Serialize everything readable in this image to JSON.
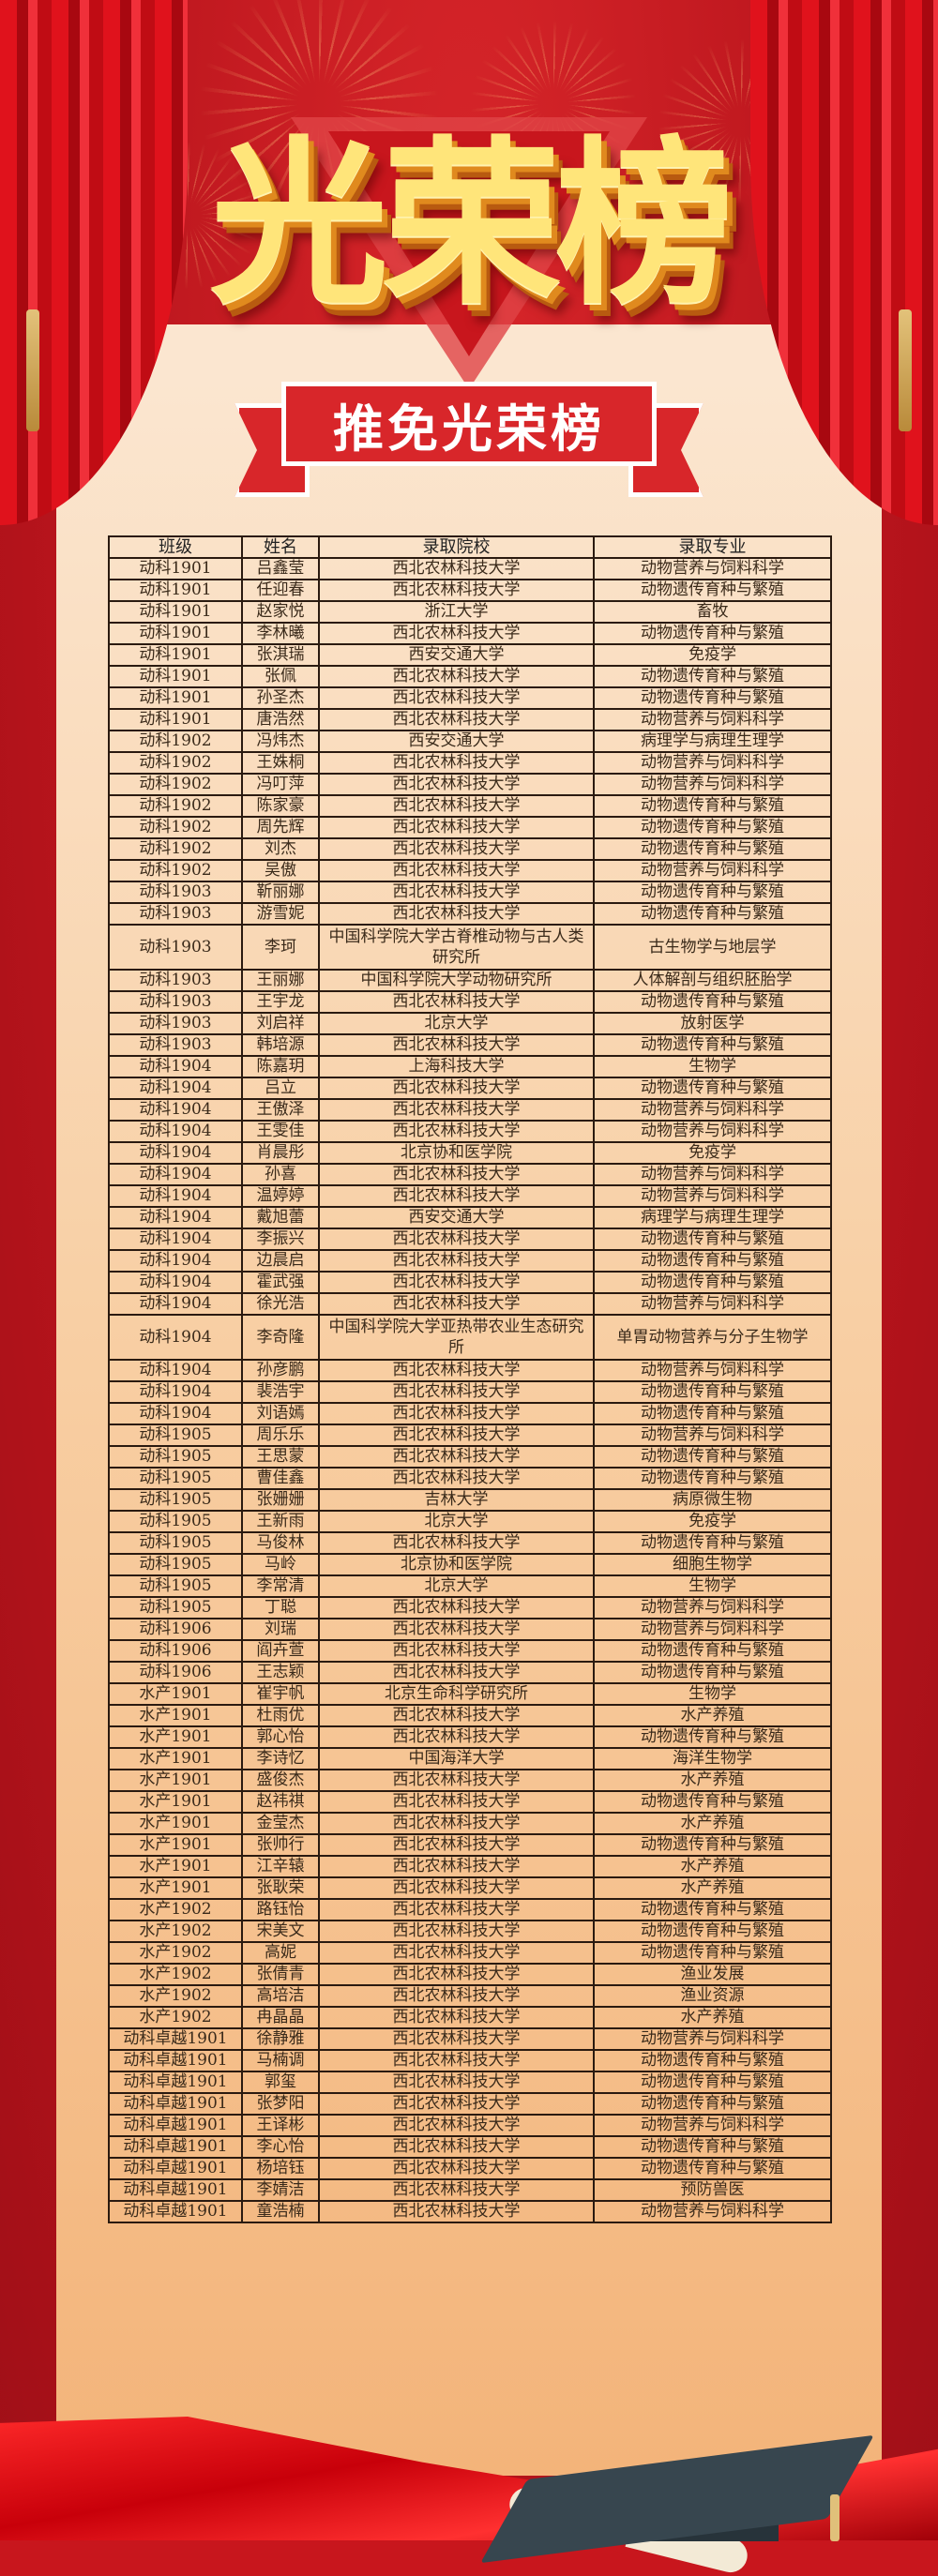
{
  "header": {
    "title": "光荣榜",
    "subtitle": "推免光荣榜"
  },
  "colors": {
    "background_red": "#c8161d",
    "title_gold": "#ffe57a",
    "banner_red": "#d8262a",
    "paper": "#f8cfa4"
  },
  "table": {
    "columns": [
      "班级",
      "姓名",
      "录取院校",
      "录取专业"
    ],
    "rows": [
      [
        "动科1901",
        "吕鑫莹",
        "西北农林科技大学",
        "动物营养与饲料科学"
      ],
      [
        "动科1901",
        "任迎春",
        "西北农林科技大学",
        "动物遗传育种与繁殖"
      ],
      [
        "动科1901",
        "赵家悦",
        "浙江大学",
        "畜牧"
      ],
      [
        "动科1901",
        "李林曦",
        "西北农林科技大学",
        "动物遗传育种与繁殖"
      ],
      [
        "动科1901",
        "张淇瑞",
        "西安交通大学",
        "免疫学"
      ],
      [
        "动科1901",
        "张佩",
        "西北农林科技大学",
        "动物遗传育种与繁殖"
      ],
      [
        "动科1901",
        "孙圣杰",
        "西北农林科技大学",
        "动物遗传育种与繁殖"
      ],
      [
        "动科1901",
        "唐浩然",
        "西北农林科技大学",
        "动物营养与饲料科学"
      ],
      [
        "动科1902",
        "冯炜杰",
        "西安交通大学",
        "病理学与病理生理学"
      ],
      [
        "动科1902",
        "王姝桐",
        "西北农林科技大学",
        "动物营养与饲料科学"
      ],
      [
        "动科1902",
        "冯叮萍",
        "西北农林科技大学",
        "动物营养与饲料科学"
      ],
      [
        "动科1902",
        "陈家豪",
        "西北农林科技大学",
        "动物遗传育种与繁殖"
      ],
      [
        "动科1902",
        "周先辉",
        "西北农林科技大学",
        "动物遗传育种与繁殖"
      ],
      [
        "动科1902",
        "刘杰",
        "西北农林科技大学",
        "动物遗传育种与繁殖"
      ],
      [
        "动科1902",
        "吴傲",
        "西北农林科技大学",
        "动物营养与饲料科学"
      ],
      [
        "动科1903",
        "靳丽娜",
        "西北农林科技大学",
        "动物遗传育种与繁殖"
      ],
      [
        "动科1903",
        "游雪妮",
        "西北农林科技大学",
        "动物遗传育种与繁殖"
      ],
      [
        "动科1903",
        "李珂",
        "中国科学院大学古脊椎动物与古人类研究所",
        "古生物学与地层学"
      ],
      [
        "动科1903",
        "王丽娜",
        "中国科学院大学动物研究所",
        "人体解剖与组织胚胎学"
      ],
      [
        "动科1903",
        "王宇龙",
        "西北农林科技大学",
        "动物遗传育种与繁殖"
      ],
      [
        "动科1903",
        "刘启祥",
        "北京大学",
        "放射医学"
      ],
      [
        "动科1903",
        "韩培源",
        "西北农林科技大学",
        "动物遗传育种与繁殖"
      ],
      [
        "动科1904",
        "陈嘉玥",
        "上海科技大学",
        "生物学"
      ],
      [
        "动科1904",
        "吕立",
        "西北农林科技大学",
        "动物遗传育种与繁殖"
      ],
      [
        "动科1904",
        "王傲泽",
        "西北农林科技大学",
        "动物营养与饲料科学"
      ],
      [
        "动科1904",
        "王雯佳",
        "西北农林科技大学",
        "动物营养与饲料科学"
      ],
      [
        "动科1904",
        "肖晨彤",
        "北京协和医学院",
        "免疫学"
      ],
      [
        "动科1904",
        "孙喜",
        "西北农林科技大学",
        "动物营养与饲料科学"
      ],
      [
        "动科1904",
        "温婷婷",
        "西北农林科技大学",
        "动物营养与饲料科学"
      ],
      [
        "动科1904",
        "戴旭蕾",
        "西安交通大学",
        "病理学与病理生理学"
      ],
      [
        "动科1904",
        "李振兴",
        "西北农林科技大学",
        "动物遗传育种与繁殖"
      ],
      [
        "动科1904",
        "边晨启",
        "西北农林科技大学",
        "动物遗传育种与繁殖"
      ],
      [
        "动科1904",
        "霍武强",
        "西北农林科技大学",
        "动物遗传育种与繁殖"
      ],
      [
        "动科1904",
        "徐光浩",
        "西北农林科技大学",
        "动物营养与饲料科学"
      ],
      [
        "动科1904",
        "李奇隆",
        "中国科学院大学亚热带农业生态研究所",
        "单胃动物营养与分子生物学"
      ],
      [
        "动科1904",
        "孙彦鹏",
        "西北农林科技大学",
        "动物营养与饲料科学"
      ],
      [
        "动科1904",
        "裴浩宇",
        "西北农林科技大学",
        "动物遗传育种与繁殖"
      ],
      [
        "动科1904",
        "刘语嫣",
        "西北农林科技大学",
        "动物遗传育种与繁殖"
      ],
      [
        "动科1905",
        "周乐乐",
        "西北农林科技大学",
        "动物营养与饲料科学"
      ],
      [
        "动科1905",
        "王思蒙",
        "西北农林科技大学",
        "动物遗传育种与繁殖"
      ],
      [
        "动科1905",
        "曹佳鑫",
        "西北农林科技大学",
        "动物遗传育种与繁殖"
      ],
      [
        "动科1905",
        "张姗姗",
        "吉林大学",
        "病原微生物"
      ],
      [
        "动科1905",
        "王新雨",
        "北京大学",
        "免疫学"
      ],
      [
        "动科1905",
        "马俊林",
        "西北农林科技大学",
        "动物遗传育种与繁殖"
      ],
      [
        "动科1905",
        "马岭",
        "北京协和医学院",
        "细胞生物学"
      ],
      [
        "动科1905",
        "李常清",
        "北京大学",
        "生物学"
      ],
      [
        "动科1905",
        "丁聪",
        "西北农林科技大学",
        "动物营养与饲料科学"
      ],
      [
        "动科1906",
        "刘瑞",
        "西北农林科技大学",
        "动物营养与饲料科学"
      ],
      [
        "动科1906",
        "阎卉萱",
        "西北农林科技大学",
        "动物遗传育种与繁殖"
      ],
      [
        "动科1906",
        "王志颖",
        "西北农林科技大学",
        "动物遗传育种与繁殖"
      ],
      [
        "水产1901",
        "崔宇帆",
        "北京生命科学研究所",
        "生物学"
      ],
      [
        "水产1901",
        "杜雨优",
        "西北农林科技大学",
        "水产养殖"
      ],
      [
        "水产1901",
        "郭心怡",
        "西北农林科技大学",
        "动物遗传育种与繁殖"
      ],
      [
        "水产1901",
        "李诗忆",
        "中国海洋大学",
        "海洋生物学"
      ],
      [
        "水产1901",
        "盛俊杰",
        "西北农林科技大学",
        "水产养殖"
      ],
      [
        "水产1901",
        "赵祎祺",
        "西北农林科技大学",
        "动物遗传育种与繁殖"
      ],
      [
        "水产1901",
        "金莹杰",
        "西北农林科技大学",
        "水产养殖"
      ],
      [
        "水产1901",
        "张帅行",
        "西北农林科技大学",
        "动物遗传育种与繁殖"
      ],
      [
        "水产1901",
        "江辛辕",
        "西北农林科技大学",
        "水产养殖"
      ],
      [
        "水产1901",
        "张耿荣",
        "西北农林科技大学",
        "水产养殖"
      ],
      [
        "水产1902",
        "路钰怡",
        "西北农林科技大学",
        "动物遗传育种与繁殖"
      ],
      [
        "水产1902",
        "宋美文",
        "西北农林科技大学",
        "动物遗传育种与繁殖"
      ],
      [
        "水产1902",
        "高妮",
        "西北农林科技大学",
        "动物遗传育种与繁殖"
      ],
      [
        "水产1902",
        "张倩青",
        "西北农林科技大学",
        "渔业发展"
      ],
      [
        "水产1902",
        "高培洁",
        "西北农林科技大学",
        "渔业资源"
      ],
      [
        "水产1902",
        "冉晶晶",
        "西北农林科技大学",
        "水产养殖"
      ],
      [
        "动科卓越1901",
        "徐静雅",
        "西北农林科技大学",
        "动物营养与饲料科学"
      ],
      [
        "动科卓越1901",
        "马楠调",
        "西北农林科技大学",
        "动物遗传育种与繁殖"
      ],
      [
        "动科卓越1901",
        "郭玺",
        "西北农林科技大学",
        "动物遗传育种与繁殖"
      ],
      [
        "动科卓越1901",
        "张梦阳",
        "西北农林科技大学",
        "动物遗传育种与繁殖"
      ],
      [
        "动科卓越1901",
        "王译彬",
        "西北农林科技大学",
        "动物营养与饲料科学"
      ],
      [
        "动科卓越1901",
        "李心怡",
        "西北农林科技大学",
        "动物遗传育种与繁殖"
      ],
      [
        "动科卓越1901",
        "杨培钰",
        "西北农林科技大学",
        "动物遗传育种与繁殖"
      ],
      [
        "动科卓越1901",
        "李婧洁",
        "西北农林科技大学",
        "预防兽医"
      ],
      [
        "动科卓越1901",
        "童浩楠",
        "西北农林科技大学",
        "动物营养与饲料科学"
      ]
    ]
  }
}
